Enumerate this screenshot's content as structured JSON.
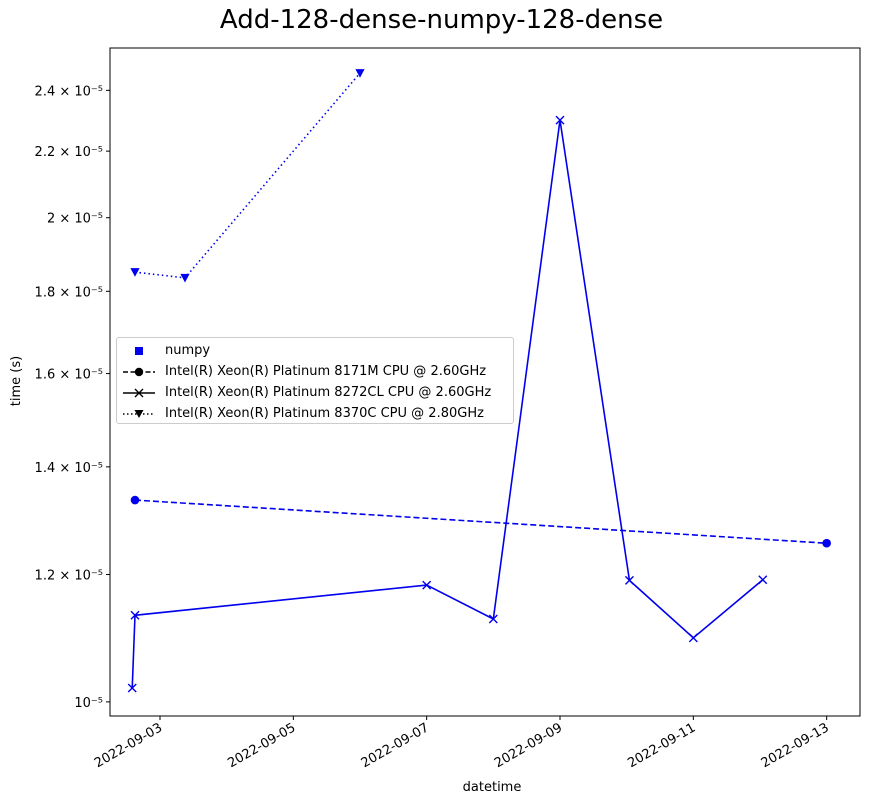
{
  "chart_data": {
    "type": "line",
    "title": "Add-128-dense-numpy-128-dense",
    "xlabel": "datetime",
    "ylabel": "time (s)",
    "yscale": "log",
    "xlim": [
      "2022-09-02T06:00",
      "2022-09-13T12:00"
    ],
    "ylim": [
      9.8e-06,
      2.55e-05
    ],
    "x_ticks": [
      "2022-09-03",
      "2022-09-05",
      "2022-09-07",
      "2022-09-09",
      "2022-09-11",
      "2022-09-13"
    ],
    "y_ticks": [
      {
        "value": 1e-05,
        "label": "10⁻⁵"
      },
      {
        "value": 1.2e-05,
        "label": "1.2 × 10⁻⁵"
      },
      {
        "value": 1.4e-05,
        "label": "1.4 × 10⁻⁵"
      },
      {
        "value": 1.6e-05,
        "label": "1.6 × 10⁻⁵"
      },
      {
        "value": 1.8e-05,
        "label": "1.8 × 10⁻⁵"
      },
      {
        "value": 2e-05,
        "label": "2 × 10⁻⁵"
      },
      {
        "value": 2.2e-05,
        "label": "2.2 × 10⁻⁵"
      },
      {
        "value": 2.4e-05,
        "label": "2.4 × 10⁻⁵"
      }
    ],
    "grid": false,
    "legend_position": "center-left",
    "color": "#0000ee",
    "legend": [
      {
        "label": "numpy",
        "marker": "square",
        "line": "none"
      },
      {
        "label": "Intel(R) Xeon(R) Platinum 8171M CPU @ 2.60GHz",
        "marker": "circle",
        "line": "dashed"
      },
      {
        "label": "Intel(R) Xeon(R) Platinum 8272CL CPU @ 2.60GHz",
        "marker": "x",
        "line": "solid"
      },
      {
        "label": "Intel(R) Xeon(R) Platinum 8370C CPU @ 2.80GHz",
        "marker": "triangle-down",
        "line": "dotted"
      }
    ],
    "series": [
      {
        "name": "Intel(R) Xeon(R) Platinum 8171M CPU @ 2.60GHz",
        "marker": "circle",
        "line": "dashed",
        "points": [
          {
            "x": "2022-09-02T15:00",
            "y": 1.335e-05
          },
          {
            "x": "2022-09-13T00:00",
            "y": 1.255e-05
          }
        ]
      },
      {
        "name": "Intel(R) Xeon(R) Platinum 8272CL CPU @ 2.60GHz",
        "marker": "x",
        "line": "solid",
        "points": [
          {
            "x": "2022-09-02T14:00",
            "y": 1.02e-05
          },
          {
            "x": "2022-09-02T15:00",
            "y": 1.132e-05
          },
          {
            "x": "2022-09-07T00:00",
            "y": 1.182e-05
          },
          {
            "x": "2022-09-08T00:00",
            "y": 1.126e-05
          },
          {
            "x": "2022-09-09T00:00",
            "y": 2.3e-05
          },
          {
            "x": "2022-09-10T01:00",
            "y": 1.19e-05
          },
          {
            "x": "2022-09-11T00:00",
            "y": 1.096e-05
          },
          {
            "x": "2022-09-12T01:00",
            "y": 1.191e-05
          }
        ]
      },
      {
        "name": "Intel(R) Xeon(R) Platinum 8370C CPU @ 2.80GHz",
        "marker": "triangle-down",
        "line": "dotted",
        "points": [
          {
            "x": "2022-09-02T15:00",
            "y": 1.85e-05
          },
          {
            "x": "2022-09-03T09:00",
            "y": 1.835e-05
          },
          {
            "x": "2022-09-06T00:00",
            "y": 2.46e-05
          }
        ]
      }
    ]
  }
}
